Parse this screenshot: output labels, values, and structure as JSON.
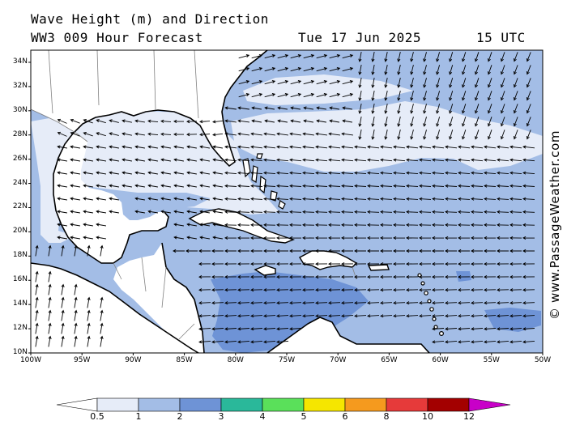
{
  "title_line1": "Wave Height (m) and Direction",
  "title_line2": "WW3 009 Hour Forecast",
  "date": "Tue 17 Jun 2025",
  "time": "15 UTC",
  "credit": "© www.PassageWeather.com",
  "lat_labels": [
    "34N",
    "32N",
    "30N",
    "28N",
    "26N",
    "24N",
    "22N",
    "20N",
    "18N",
    "16N",
    "14N",
    "12N",
    "10N"
  ],
  "lon_labels": [
    "100W",
    "95W",
    "90W",
    "85W",
    "80W",
    "75W",
    "70W",
    "65W",
    "60W",
    "55W",
    "50W"
  ],
  "colorbar": {
    "labels": [
      "0.5",
      "1",
      "2",
      "3",
      "4",
      "5",
      "6",
      "8",
      "10",
      "12"
    ],
    "colors": [
      "#ffffff",
      "#e6ecf8",
      "#a3bde6",
      "#6e93d6",
      "#2ab89a",
      "#5ae05a",
      "#f5e600",
      "#f59a1e",
      "#e63a3a",
      "#a30000",
      "#c800c8"
    ]
  },
  "map_colors": {
    "land": "#ffffff",
    "sea_lt1": "#e6ecf8",
    "sea_1_2": "#a3bde6",
    "sea_2_3": "#6e93d6",
    "coast": "#000000",
    "borders": "#808080"
  },
  "chart_data": {
    "type": "heatmap",
    "title": "Wave Height (m) and Direction",
    "units": "m",
    "lon_range": [
      -100,
      -50
    ],
    "lat_range": [
      10,
      35
    ],
    "levels": [
      0.5,
      1,
      2,
      3,
      4,
      5,
      6,
      8,
      10,
      12
    ],
    "regions": [
      {
        "area": "Gulf of Mexico",
        "wave_height_m": "0.5-1",
        "direction": "westward / north-westward"
      },
      {
        "area": "Western Atlantic north of Bahamas",
        "wave_height_m": "0.5-1",
        "direction": "easterly to westward"
      },
      {
        "area": "Central Atlantic 20N-28N",
        "wave_height_m": "1-2",
        "direction": "westward"
      },
      {
        "area": "Central Caribbean Sea",
        "wave_height_m": "2-3",
        "direction": "westward"
      },
      {
        "area": "Eastern Pacific off Central America",
        "wave_height_m": "1-3",
        "direction": "northward"
      },
      {
        "area": "East of Lesser Antilles near 14N",
        "wave_height_m": "2-3",
        "direction": "westward"
      }
    ]
  }
}
